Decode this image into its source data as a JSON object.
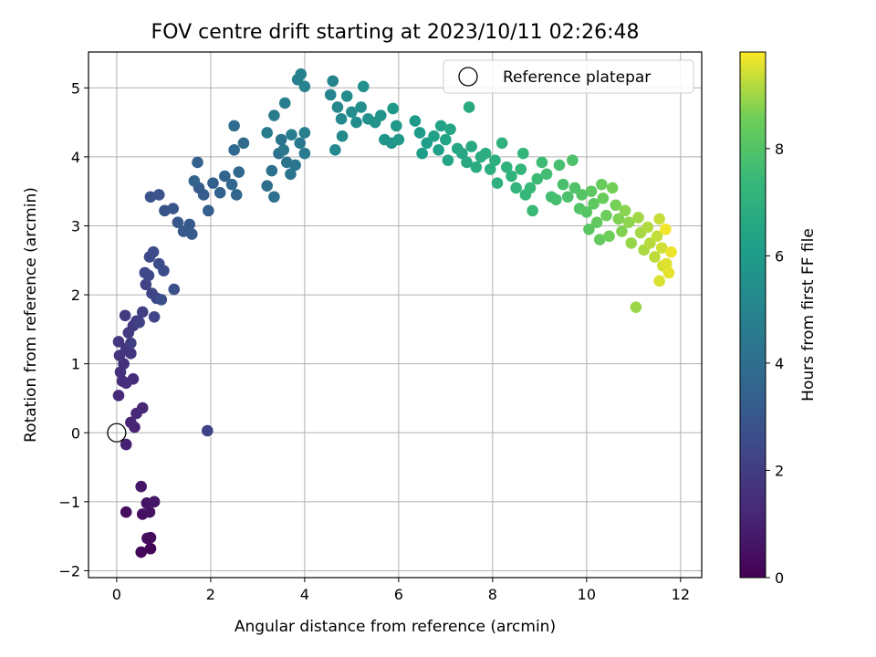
{
  "chart_data": {
    "type": "scatter",
    "title": "FOV centre drift starting at 2023/10/11 02:26:48",
    "xlabel": "Angular distance from reference (arcmin)",
    "ylabel": "Rotation from reference (arcmin)",
    "xlim": [
      -0.6,
      12.45
    ],
    "ylim": [
      -2.1,
      5.52
    ],
    "xticks": [
      0,
      2,
      4,
      6,
      8,
      10,
      12
    ],
    "xtick_labels": [
      "0",
      "2",
      "4",
      "6",
      "8",
      "10",
      "12"
    ],
    "yticks": [
      -2,
      -1,
      0,
      1,
      2,
      3,
      4,
      5
    ],
    "ytick_labels": [
      "−2",
      "−1",
      "0",
      "1",
      "2",
      "3",
      "4",
      "5"
    ],
    "grid": true,
    "legend": {
      "placement": "top-right",
      "entries": [
        "Reference platepar"
      ]
    },
    "reference_point": {
      "x": 0,
      "y": 0
    },
    "colorbar": {
      "label": "Hours from first FF file",
      "colormap": "viridis",
      "range": [
        0,
        9.8
      ],
      "ticks": [
        0,
        2,
        4,
        6,
        8
      ],
      "tick_labels": [
        "0",
        "2",
        "4",
        "6",
        "8"
      ]
    },
    "points": [
      [
        0.72,
        -1.68,
        0.1
      ],
      [
        0.52,
        -1.73,
        0.2
      ],
      [
        0.65,
        -1.53,
        0.3
      ],
      [
        0.72,
        -1.52,
        0.35
      ],
      [
        0.2,
        -1.15,
        0.4
      ],
      [
        0.55,
        -1.18,
        0.5
      ],
      [
        0.7,
        -1.15,
        0.55
      ],
      [
        0.64,
        -1.02,
        0.6
      ],
      [
        0.8,
        -1.0,
        0.65
      ],
      [
        0.52,
        -0.78,
        0.7
      ],
      [
        0.2,
        -0.17,
        1.0
      ],
      [
        0.38,
        0.08,
        1.1
      ],
      [
        0.3,
        0.15,
        1.15
      ],
      [
        0.55,
        0.36,
        1.2
      ],
      [
        0.42,
        0.28,
        1.25
      ],
      [
        0.04,
        0.54,
        1.3
      ],
      [
        0.12,
        0.75,
        1.4
      ],
      [
        0.35,
        0.78,
        1.45
      ],
      [
        0.2,
        0.72,
        1.5
      ],
      [
        0.08,
        0.88,
        1.55
      ],
      [
        0.15,
        1.0,
        1.6
      ],
      [
        0.06,
        1.12,
        1.65
      ],
      [
        0.3,
        1.15,
        1.7
      ],
      [
        0.2,
        1.22,
        1.75
      ],
      [
        0.04,
        1.32,
        1.8
      ],
      [
        0.25,
        1.45,
        1.85
      ],
      [
        0.35,
        1.55,
        1.9
      ],
      [
        0.42,
        1.62,
        1.95
      ],
      [
        0.18,
        1.7,
        2.0
      ],
      [
        0.3,
        1.3,
        2.05
      ],
      [
        0.55,
        1.75,
        2.1
      ],
      [
        0.48,
        1.6,
        2.15
      ],
      [
        0.62,
        2.15,
        2.2
      ],
      [
        0.75,
        2.02,
        2.25
      ],
      [
        0.8,
        1.68,
        2.3
      ],
      [
        0.85,
        1.95,
        2.35
      ],
      [
        0.68,
        2.28,
        2.4
      ],
      [
        0.6,
        2.32,
        2.45
      ],
      [
        0.7,
        2.55,
        2.5
      ],
      [
        0.78,
        2.62,
        2.55
      ],
      [
        0.9,
        2.45,
        2.6
      ],
      [
        1.0,
        2.35,
        2.65
      ],
      [
        0.95,
        1.93,
        2.7
      ],
      [
        1.22,
        2.08,
        2.75
      ],
      [
        0.72,
        3.42,
        2.8
      ],
      [
        0.9,
        3.45,
        2.85
      ],
      [
        1.02,
        3.22,
        2.9
      ],
      [
        1.2,
        3.25,
        2.95
      ],
      [
        1.3,
        3.05,
        3.0
      ],
      [
        1.42,
        2.92,
        3.05
      ],
      [
        1.55,
        3.02,
        3.1
      ],
      [
        1.6,
        2.88,
        3.15
      ],
      [
        1.75,
        3.55,
        3.2
      ],
      [
        1.85,
        3.45,
        3.25
      ],
      [
        1.95,
        3.22,
        3.3
      ],
      [
        2.05,
        3.62,
        3.35
      ],
      [
        2.2,
        3.48,
        3.4
      ],
      [
        1.72,
        3.92,
        3.45
      ],
      [
        1.65,
        3.65,
        3.5
      ],
      [
        2.3,
        3.72,
        3.55
      ],
      [
        2.45,
        3.6,
        3.6
      ],
      [
        2.55,
        3.45,
        3.65
      ],
      [
        2.6,
        3.78,
        3.7
      ],
      [
        2.5,
        4.1,
        3.75
      ],
      [
        2.7,
        4.2,
        3.8
      ],
      [
        2.5,
        4.45,
        3.85
      ],
      [
        1.93,
        0.03,
        2.2
      ],
      [
        3.2,
        3.58,
        4.0
      ],
      [
        3.35,
        3.42,
        4.05
      ],
      [
        3.3,
        3.8,
        4.1
      ],
      [
        3.45,
        4.05,
        4.15
      ],
      [
        3.5,
        4.25,
        4.2
      ],
      [
        3.62,
        3.92,
        4.25
      ],
      [
        3.7,
        3.75,
        4.3
      ],
      [
        3.8,
        3.88,
        4.35
      ],
      [
        3.55,
        4.1,
        4.4
      ],
      [
        3.9,
        4.2,
        4.45
      ],
      [
        4.0,
        4.05,
        4.5
      ],
      [
        3.2,
        4.35,
        4.55
      ],
      [
        3.35,
        4.6,
        4.6
      ],
      [
        3.58,
        4.78,
        4.65
      ],
      [
        3.72,
        4.32,
        4.7
      ],
      [
        4.0,
        4.35,
        4.75
      ],
      [
        3.85,
        5.12,
        4.8
      ],
      [
        3.92,
        5.2,
        4.85
      ],
      [
        4.0,
        5.02,
        4.9
      ],
      [
        4.55,
        4.9,
        5.0
      ],
      [
        4.6,
        5.1,
        5.05
      ],
      [
        4.7,
        4.72,
        5.1
      ],
      [
        4.78,
        4.55,
        5.15
      ],
      [
        4.8,
        4.3,
        5.2
      ],
      [
        4.65,
        4.1,
        5.25
      ],
      [
        4.9,
        4.88,
        5.3
      ],
      [
        5.0,
        4.65,
        5.35
      ],
      [
        5.1,
        4.5,
        5.4
      ],
      [
        5.2,
        4.72,
        5.45
      ],
      [
        5.25,
        5.02,
        5.5
      ],
      [
        5.35,
        4.55,
        5.55
      ],
      [
        5.5,
        4.5,
        5.6
      ],
      [
        5.62,
        4.6,
        5.65
      ],
      [
        5.7,
        4.25,
        5.7
      ],
      [
        5.85,
        4.2,
        5.75
      ],
      [
        5.95,
        4.45,
        5.8
      ],
      [
        6.0,
        4.25,
        5.85
      ],
      [
        5.88,
        4.7,
        5.9
      ],
      [
        6.35,
        4.52,
        6.0
      ],
      [
        6.45,
        4.35,
        6.05
      ],
      [
        6.5,
        4.05,
        6.1
      ],
      [
        6.6,
        4.2,
        6.15
      ],
      [
        6.85,
        4.1,
        6.2
      ],
      [
        6.75,
        4.3,
        6.25
      ],
      [
        6.9,
        4.45,
        6.3
      ],
      [
        7.0,
        4.25,
        6.35
      ],
      [
        7.05,
        3.95,
        6.4
      ],
      [
        7.1,
        4.4,
        6.45
      ],
      [
        7.25,
        4.12,
        6.5
      ],
      [
        7.35,
        4.05,
        6.55
      ],
      [
        7.45,
        3.92,
        6.6
      ],
      [
        7.55,
        4.15,
        6.65
      ],
      [
        7.5,
        4.72,
        6.7
      ],
      [
        7.65,
        3.85,
        6.75
      ],
      [
        7.75,
        4.0,
        6.8
      ],
      [
        7.85,
        4.05,
        6.85
      ],
      [
        7.95,
        3.82,
        6.9
      ],
      [
        8.05,
        3.95,
        6.95
      ],
      [
        8.1,
        3.62,
        7.0
      ],
      [
        8.2,
        4.2,
        7.05
      ],
      [
        8.3,
        3.85,
        7.1
      ],
      [
        8.4,
        3.72,
        7.15
      ],
      [
        8.5,
        3.55,
        7.2
      ],
      [
        8.6,
        3.82,
        7.25
      ],
      [
        8.65,
        4.05,
        7.3
      ],
      [
        8.7,
        3.45,
        7.35
      ],
      [
        8.8,
        3.55,
        7.4
      ],
      [
        8.85,
        3.22,
        7.45
      ],
      [
        8.95,
        3.68,
        7.5
      ],
      [
        9.05,
        3.92,
        7.55
      ],
      [
        9.15,
        3.75,
        7.6
      ],
      [
        9.25,
        3.42,
        7.65
      ],
      [
        9.35,
        3.38,
        7.7
      ],
      [
        9.42,
        3.88,
        7.75
      ],
      [
        9.5,
        3.6,
        7.8
      ],
      [
        9.6,
        3.42,
        7.85
      ],
      [
        9.7,
        3.95,
        7.9
      ],
      [
        9.75,
        3.55,
        7.95
      ],
      [
        9.85,
        3.25,
        8.0
      ],
      [
        9.9,
        3.45,
        8.05
      ],
      [
        10.0,
        3.2,
        8.1
      ],
      [
        10.05,
        2.95,
        8.15
      ],
      [
        10.1,
        3.5,
        8.2
      ],
      [
        10.15,
        3.32,
        8.25
      ],
      [
        10.22,
        3.05,
        8.3
      ],
      [
        10.28,
        2.8,
        8.35
      ],
      [
        10.32,
        3.6,
        8.4
      ],
      [
        10.35,
        3.4,
        8.45
      ],
      [
        10.42,
        3.15,
        8.5
      ],
      [
        10.48,
        2.85,
        8.55
      ],
      [
        10.55,
        3.55,
        8.6
      ],
      [
        10.62,
        3.3,
        8.65
      ],
      [
        10.68,
        3.1,
        8.7
      ],
      [
        10.75,
        2.92,
        8.75
      ],
      [
        10.82,
        3.22,
        8.8
      ],
      [
        10.9,
        3.05,
        8.85
      ],
      [
        10.95,
        2.75,
        8.9
      ],
      [
        11.05,
        1.82,
        8.95
      ],
      [
        11.1,
        3.12,
        9.0
      ],
      [
        11.15,
        2.9,
        9.05
      ],
      [
        11.22,
        2.65,
        9.1
      ],
      [
        11.3,
        2.98,
        9.15
      ],
      [
        11.35,
        2.75,
        9.2
      ],
      [
        11.45,
        2.55,
        9.25
      ],
      [
        11.5,
        2.85,
        9.3
      ],
      [
        11.55,
        3.1,
        9.35
      ],
      [
        11.6,
        2.68,
        9.4
      ],
      [
        11.62,
        2.42,
        9.45
      ],
      [
        11.55,
        2.2,
        9.5
      ],
      [
        11.7,
        2.45,
        9.55
      ],
      [
        11.75,
        2.32,
        9.6
      ],
      [
        11.8,
        2.62,
        9.65
      ],
      [
        11.68,
        2.95,
        9.7
      ]
    ]
  }
}
